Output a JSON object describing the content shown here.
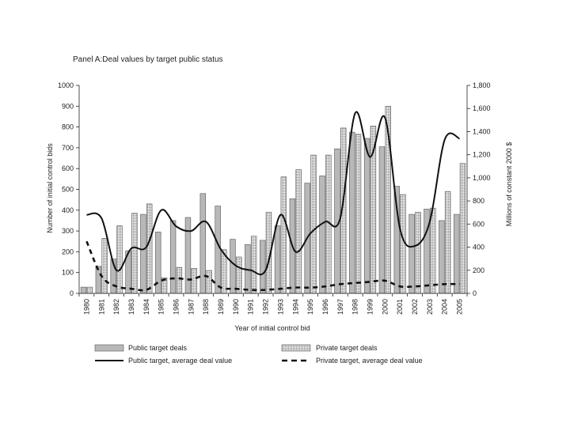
{
  "chart_data": {
    "type": "bar",
    "title": "Panel A:Deal values by target public status",
    "xlabel": "Year of initial control bid",
    "ylabel_left": "Number of initial control bids",
    "ylabel_right": "Millions of constant 2000 $",
    "ylim_left": [
      0,
      1000
    ],
    "ylim_right": [
      0,
      1800
    ],
    "yticks_left": [
      "0",
      "100",
      "200",
      "300",
      "400",
      "500",
      "600",
      "700",
      "800",
      "900",
      "1000"
    ],
    "yticks_right": [
      "0",
      "200",
      "400",
      "600",
      "800",
      "1,000",
      "1,200",
      "1,400",
      "1,600",
      "1,800"
    ],
    "categories": [
      "1980",
      "1981",
      "1982",
      "1983",
      "1984",
      "1985",
      "1986",
      "1987",
      "1988",
      "1989",
      "1990",
      "1991",
      "1992",
      "1993",
      "1994",
      "1995",
      "1996",
      "1997",
      "1998",
      "1999",
      "2000",
      "2001",
      "2002",
      "2003",
      "2004",
      "2005"
    ],
    "series": [
      {
        "name": "Public target deals",
        "axis": "left",
        "kind": "bar",
        "color": "#b8b8b8",
        "values": [
          30,
          130,
          165,
          205,
          380,
          295,
          350,
          365,
          480,
          420,
          260,
          235,
          255,
          325,
          455,
          530,
          565,
          695,
          775,
          745,
          705,
          515,
          380,
          405,
          350,
          380
        ]
      },
      {
        "name": "Private target deals",
        "axis": "left",
        "kind": "bar",
        "color": "#d6d6d6",
        "values": [
          30,
          265,
          325,
          385,
          430,
          75,
          125,
          120,
          110,
          210,
          175,
          275,
          390,
          560,
          595,
          665,
          665,
          795,
          765,
          805,
          900,
          475,
          390,
          410,
          490,
          625
        ]
      },
      {
        "name": "Public target, average deal value",
        "axis": "right",
        "kind": "line",
        "style": "solid",
        "values": [
          680,
          650,
          200,
          390,
          400,
          720,
          580,
          540,
          620,
          380,
          240,
          200,
          200,
          680,
          360,
          520,
          620,
          650,
          1560,
          1180,
          1520,
          560,
          410,
          620,
          1330,
          1340
        ]
      },
      {
        "name": "Private target, average deal value",
        "axis": "right",
        "kind": "line",
        "style": "dashed",
        "values": [
          450,
          150,
          60,
          40,
          30,
          110,
          130,
          120,
          150,
          50,
          40,
          30,
          30,
          40,
          50,
          50,
          60,
          80,
          90,
          100,
          110,
          60,
          60,
          70,
          80,
          80
        ]
      }
    ],
    "legend_position": "bottom"
  }
}
